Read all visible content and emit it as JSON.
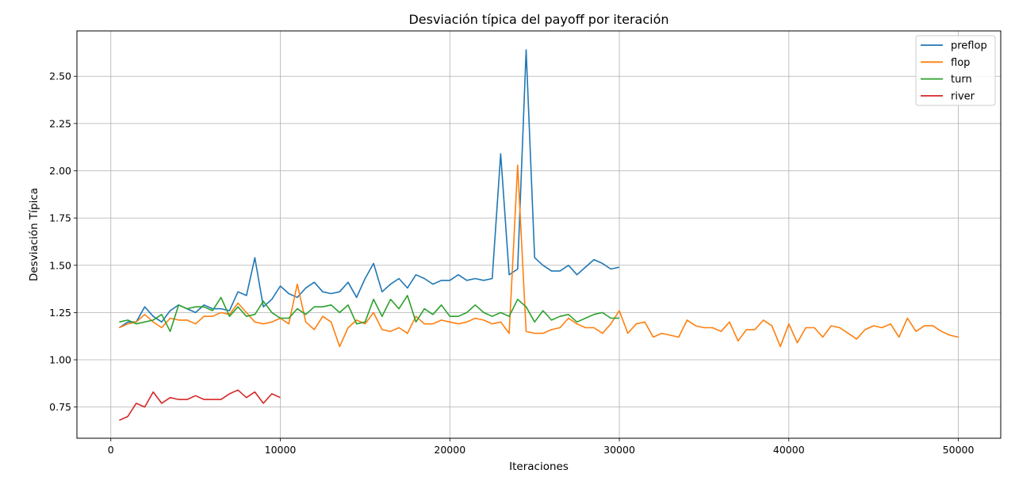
{
  "chart_data": {
    "type": "line",
    "title": "Desviación típica del payoff por iteración",
    "xlabel": "Iteraciones",
    "ylabel": "Desviación Típica",
    "xlim": [
      -2000,
      52500
    ],
    "ylim": [
      0.585,
      2.74
    ],
    "x_ticks": [
      0,
      10000,
      20000,
      30000,
      40000,
      50000
    ],
    "x_tick_labels": [
      "0",
      "10000",
      "20000",
      "30000",
      "40000",
      "50000"
    ],
    "y_ticks": [
      0.75,
      1.0,
      1.25,
      1.5,
      1.75,
      2.0,
      2.25,
      2.5
    ],
    "y_tick_labels": [
      "0.75",
      "1.00",
      "1.25",
      "1.50",
      "1.75",
      "2.00",
      "2.25",
      "2.50"
    ],
    "grid": true,
    "legend_position": "top-right",
    "series": [
      {
        "name": "preflop",
        "color": "#1f77b4",
        "x": [
          500,
          1000,
          1500,
          2000,
          2500,
          3000,
          3500,
          4000,
          4500,
          5000,
          5500,
          6000,
          6500,
          7000,
          7500,
          8000,
          8500,
          9000,
          9500,
          10000,
          10500,
          11000,
          11500,
          12000,
          12500,
          13000,
          13500,
          14000,
          14500,
          15000,
          15500,
          16000,
          16500,
          17000,
          17500,
          18000,
          18500,
          19000,
          19500,
          20000,
          20500,
          21000,
          21500,
          22000,
          22500,
          23000,
          23500,
          24000,
          24500,
          25000,
          25500,
          26000,
          26500,
          27000,
          27500,
          28000,
          28500,
          29000,
          29500,
          30000
        ],
        "values": [
          1.17,
          1.2,
          1.2,
          1.28,
          1.23,
          1.2,
          1.26,
          1.29,
          1.27,
          1.25,
          1.29,
          1.27,
          1.27,
          1.26,
          1.36,
          1.34,
          1.54,
          1.28,
          1.32,
          1.39,
          1.35,
          1.33,
          1.38,
          1.41,
          1.36,
          1.35,
          1.36,
          1.41,
          1.33,
          1.43,
          1.51,
          1.36,
          1.4,
          1.43,
          1.38,
          1.45,
          1.43,
          1.4,
          1.42,
          1.42,
          1.45,
          1.42,
          1.43,
          1.42,
          1.43,
          2.09,
          1.45,
          1.48,
          2.64,
          1.54,
          1.5,
          1.47,
          1.47,
          1.5,
          1.45,
          1.49,
          1.53,
          1.51,
          1.48,
          1.49
        ]
      },
      {
        "name": "flop",
        "color": "#ff7f0e",
        "x": [
          500,
          1000,
          1500,
          2000,
          2500,
          3000,
          3500,
          4000,
          4500,
          5000,
          5500,
          6000,
          6500,
          7000,
          7500,
          8000,
          8500,
          9000,
          9500,
          10000,
          10500,
          11000,
          11500,
          12000,
          12500,
          13000,
          13500,
          14000,
          14500,
          15000,
          15500,
          16000,
          16500,
          17000,
          17500,
          18000,
          18500,
          19000,
          19500,
          20000,
          20500,
          21000,
          21500,
          22000,
          22500,
          23000,
          23500,
          24000,
          24500,
          25000,
          25500,
          26000,
          26500,
          27000,
          27500,
          28000,
          28500,
          29000,
          29500,
          30000,
          30500,
          31000,
          31500,
          32000,
          32500,
          33000,
          33500,
          34000,
          34500,
          35000,
          35500,
          36000,
          36500,
          37000,
          37500,
          38000,
          38500,
          39000,
          39500,
          40000,
          40500,
          41000,
          41500,
          42000,
          42500,
          43000,
          43500,
          44000,
          44500,
          45000,
          45500,
          46000,
          46500,
          47000,
          47500,
          48000,
          48500,
          49000,
          49500,
          50000
        ],
        "values": [
          1.17,
          1.19,
          1.2,
          1.24,
          1.2,
          1.17,
          1.22,
          1.21,
          1.21,
          1.19,
          1.23,
          1.23,
          1.25,
          1.24,
          1.3,
          1.25,
          1.2,
          1.19,
          1.2,
          1.22,
          1.19,
          1.4,
          1.2,
          1.16,
          1.23,
          1.2,
          1.07,
          1.17,
          1.21,
          1.19,
          1.25,
          1.16,
          1.15,
          1.17,
          1.14,
          1.23,
          1.19,
          1.19,
          1.21,
          1.2,
          1.19,
          1.2,
          1.22,
          1.21,
          1.19,
          1.2,
          1.14,
          2.03,
          1.15,
          1.14,
          1.14,
          1.16,
          1.17,
          1.22,
          1.19,
          1.17,
          1.17,
          1.14,
          1.19,
          1.26,
          1.14,
          1.19,
          1.2,
          1.12,
          1.14,
          1.13,
          1.12,
          1.21,
          1.18,
          1.17,
          1.17,
          1.15,
          1.2,
          1.1,
          1.16,
          1.16,
          1.21,
          1.18,
          1.07,
          1.19,
          1.09,
          1.17,
          1.17,
          1.12,
          1.18,
          1.17,
          1.14,
          1.11,
          1.16,
          1.18,
          1.17,
          1.19,
          1.12,
          1.22,
          1.15,
          1.18,
          1.18,
          1.15,
          1.13,
          1.12
        ]
      },
      {
        "name": "turn",
        "color": "#2ca02c",
        "x": [
          500,
          1000,
          1500,
          2000,
          2500,
          3000,
          3500,
          4000,
          4500,
          5000,
          5500,
          6000,
          6500,
          7000,
          7500,
          8000,
          8500,
          9000,
          9500,
          10000,
          10500,
          11000,
          11500,
          12000,
          12500,
          13000,
          13500,
          14000,
          14500,
          15000,
          15500,
          16000,
          16500,
          17000,
          17500,
          18000,
          18500,
          19000,
          19500,
          20000,
          20500,
          21000,
          21500,
          22000,
          22500,
          23000,
          23500,
          24000,
          24500,
          25000,
          25500,
          26000,
          26500,
          27000,
          27500,
          28000,
          28500,
          29000,
          29500,
          30000
        ],
        "values": [
          1.2,
          1.21,
          1.19,
          1.2,
          1.21,
          1.24,
          1.15,
          1.29,
          1.27,
          1.28,
          1.28,
          1.26,
          1.33,
          1.23,
          1.28,
          1.23,
          1.24,
          1.31,
          1.25,
          1.22,
          1.22,
          1.27,
          1.24,
          1.28,
          1.28,
          1.29,
          1.25,
          1.29,
          1.19,
          1.2,
          1.32,
          1.23,
          1.32,
          1.27,
          1.34,
          1.2,
          1.27,
          1.24,
          1.29,
          1.23,
          1.23,
          1.25,
          1.29,
          1.25,
          1.23,
          1.25,
          1.23,
          1.32,
          1.28,
          1.2,
          1.26,
          1.21,
          1.23,
          1.24,
          1.2,
          1.22,
          1.24,
          1.25,
          1.22,
          1.22
        ]
      },
      {
        "name": "river",
        "color": "#d62728",
        "x": [
          500,
          1000,
          1500,
          2000,
          2500,
          3000,
          3500,
          4000,
          4500,
          5000,
          5500,
          6000,
          6500,
          7000,
          7500,
          8000,
          8500,
          9000,
          9500,
          10000
        ],
        "values": [
          0.68,
          0.7,
          0.77,
          0.75,
          0.83,
          0.77,
          0.8,
          0.79,
          0.79,
          0.81,
          0.79,
          0.79,
          0.79,
          0.82,
          0.84,
          0.8,
          0.83,
          0.77,
          0.82,
          0.8
        ]
      }
    ]
  }
}
